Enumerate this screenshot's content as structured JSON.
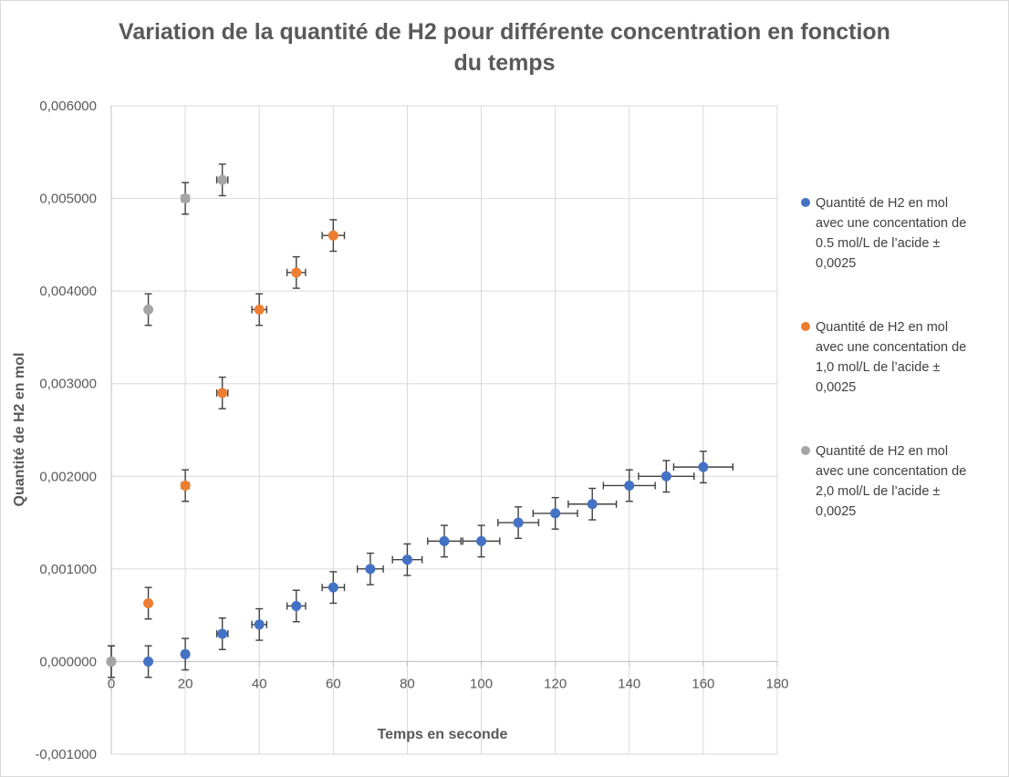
{
  "chart_data": {
    "type": "scatter",
    "title": "Variation de la quantité de H2 pour différente concentration en fonction du temps",
    "title_lines": [
      "Variation de la quantité de H2 pour différente concentration en fonction",
      "du temps"
    ],
    "xlabel": "Temps en seconde",
    "ylabel": "Quantité de H2 en mol",
    "xlim": [
      0,
      180
    ],
    "ylim": [
      -0.001,
      0.006
    ],
    "x_ticks": [
      0,
      20,
      40,
      60,
      80,
      100,
      120,
      140,
      160,
      180
    ],
    "x_tick_labels": [
      "0",
      "20",
      "40",
      "60",
      "80",
      "100",
      "120",
      "140",
      "160",
      "180"
    ],
    "y_ticks": [
      -0.001,
      0,
      0.001,
      0.002,
      0.003,
      0.004,
      0.005,
      0.006
    ],
    "y_tick_labels": [
      "-0,001000",
      "0,000000",
      "0,001000",
      "0,002000",
      "0,003000",
      "0,004000",
      "0,005000",
      "0,006000"
    ],
    "grid": true,
    "legend_position": "right",
    "y_error": 0.00017,
    "series": [
      {
        "name": "Quantité de H2 en mol avec une concentation de 0.5 mol/L de l’acide ± 0,0025",
        "legend_lines": [
          "Quantité de H2 en mol",
          "avec une concentation de",
          "0.5 mol/L de l’acide ±",
          "0,0025"
        ],
        "color": "#4472C4",
        "x": [
          0,
          10,
          20,
          30,
          40,
          50,
          60,
          70,
          80,
          90,
          100,
          110,
          120,
          130,
          140,
          150,
          160
        ],
        "y": [
          0,
          0,
          8e-05,
          0.0003,
          0.0004,
          0.0006,
          0.0008,
          0.001,
          0.0011,
          0.0013,
          0.0013,
          0.0015,
          0.0016,
          0.0017,
          0.0019,
          0.002,
          0.0021
        ],
        "x_error": [
          0,
          0.5,
          0.8,
          1.5,
          2,
          2.5,
          3,
          3.5,
          4,
          4.5,
          5,
          5.5,
          6,
          6.5,
          7,
          7.5,
          8
        ]
      },
      {
        "name": "Quantité de H2 en mol avec une concentation de 1,0 mol/L de l’acide ± 0,0025",
        "legend_lines": [
          "Quantité de H2 en mol",
          "avec une concentation de",
          "1,0 mol/L de l’acide ±",
          "0,0025"
        ],
        "color": "#ED7D31",
        "x": [
          10,
          20,
          30,
          40,
          50,
          60
        ],
        "y": [
          0.00063,
          0.0019,
          0.0029,
          0.0038,
          0.0042,
          0.0046
        ],
        "x_error": [
          0.5,
          1,
          1.5,
          2,
          2.5,
          3
        ]
      },
      {
        "name": "Quantité de H2 en mol avec une concentation de 2,0 mol/L de l’acide ± 0,0025",
        "legend_lines": [
          "Quantité de H2 en mol",
          "avec une concentation de",
          "2,0 mol/L de l’acide ±",
          "0,0025"
        ],
        "color": "#A5A5A5",
        "x": [
          0,
          10,
          20,
          30
        ],
        "y": [
          0,
          0.0038,
          0.005,
          0.0052
        ],
        "x_error": [
          0,
          0.5,
          1,
          1.5
        ]
      }
    ]
  }
}
